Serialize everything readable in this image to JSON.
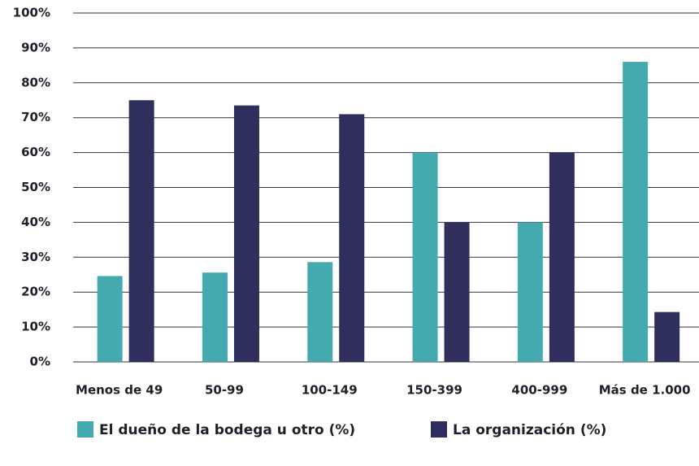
{
  "chart_data": {
    "type": "bar",
    "categories": [
      "Menos de 49",
      "50-99",
      "100-149",
      "150-399",
      "400-999",
      "Más de 1.000"
    ],
    "series": [
      {
        "name": "El dueño de la bodega u otro (%)",
        "color": "#45aab0",
        "values": [
          24.6,
          25.6,
          28.6,
          60,
          40,
          86
        ]
      },
      {
        "name": "La organización (%)",
        "color": "#2e2f5c",
        "values": [
          75,
          73.5,
          71,
          40,
          60,
          14.3
        ]
      }
    ],
    "ylim": [
      0,
      100
    ],
    "yticks": [
      {
        "value": 0,
        "label": "0%"
      },
      {
        "value": 10,
        "label": "10%"
      },
      {
        "value": 20,
        "label": "20%"
      },
      {
        "value": 30,
        "label": "30%"
      },
      {
        "value": 40,
        "label": "40%"
      },
      {
        "value": 50,
        "label": "50%"
      },
      {
        "value": 60,
        "label": "60%"
      },
      {
        "value": 70,
        "label": "70%"
      },
      {
        "value": 80,
        "label": "80%"
      },
      {
        "value": 90,
        "label": "90%"
      },
      {
        "value": 100,
        "label": "100%"
      }
    ],
    "grid": true
  }
}
